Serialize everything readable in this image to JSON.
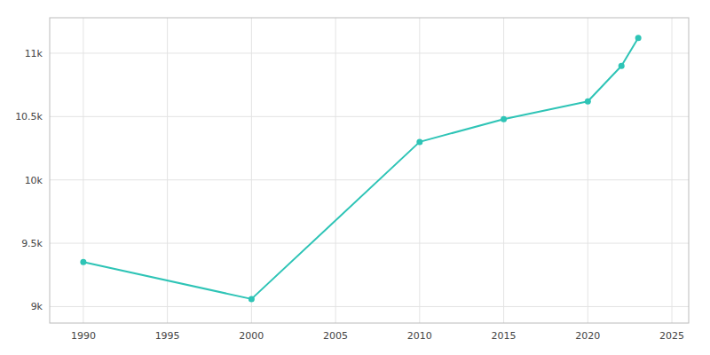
{
  "chart_data": {
    "type": "line",
    "x": [
      1990,
      2000,
      2010,
      2015,
      2020,
      2022,
      2023
    ],
    "values": [
      9352,
      9060,
      10300,
      10480,
      10620,
      10900,
      11120
    ],
    "color": "#2ec4b6",
    "marker": "circle",
    "xlim": [
      1988,
      2026
    ],
    "xticks": [
      1990,
      1995,
      2000,
      2005,
      2010,
      2015,
      2020,
      2025
    ],
    "ylim": [
      8870,
      11280
    ],
    "yticks": [
      {
        "value": 9000,
        "label": "9k"
      },
      {
        "value": 9500,
        "label": "9.5k"
      },
      {
        "value": 10000,
        "label": "10k"
      },
      {
        "value": 10500,
        "label": "10.5k"
      },
      {
        "value": 11000,
        "label": "11k"
      }
    ],
    "grid": true
  }
}
